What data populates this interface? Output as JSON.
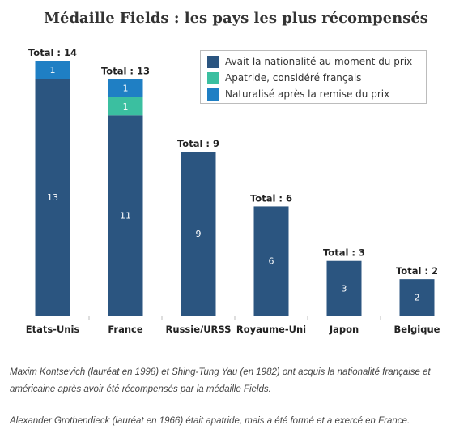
{
  "chart_data": {
    "type": "bar",
    "stacked": true,
    "title": "Médaille Fields : les pays les plus récompensés",
    "categories": [
      "Etats-Unis",
      "France",
      "Russie/URSS",
      "Royaume-Uni",
      "Japon",
      "Belgique"
    ],
    "series": [
      {
        "name": "Avait la nationalité au moment du prix",
        "values": [
          13,
          11,
          9,
          6,
          3,
          2
        ],
        "color": "#2b5580"
      },
      {
        "name": "Apatride, considéré français",
        "values": [
          0,
          1,
          0,
          0,
          0,
          0
        ],
        "color": "#3bbfa0"
      },
      {
        "name": "Naturalisé après la remise du prix",
        "values": [
          1,
          1,
          0,
          0,
          0,
          0
        ],
        "color": "#1f7fc4"
      }
    ],
    "totals": [
      "Total : 14",
      "Total : 13",
      "Total : 9",
      "Total : 6",
      "Total : 3",
      "Total : 2"
    ],
    "ylim": [
      0,
      14
    ],
    "grid": false,
    "legend_position": "top-right"
  },
  "notes": [
    "Maxim Kontsevich (lauréat en 1998) et Shing-Tung Yau (en 1982) ont acquis la nationalité française et américaine après avoir été récompensés par la médaille Fields.",
    "Alexander Grothendieck (lauréat en 1966) était apatride, mais a été formé et a exercé en France."
  ]
}
